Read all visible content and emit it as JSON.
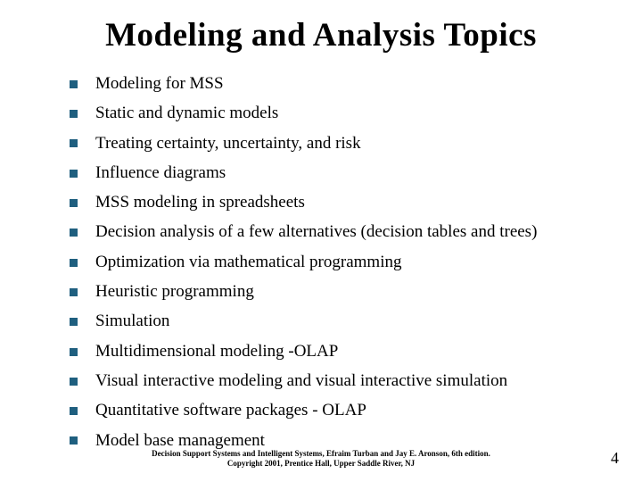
{
  "title": "Modeling and Analysis Topics",
  "bullets": [
    "Modeling for MSS",
    "Static and dynamic models",
    "Treating certainty, uncertainty, and risk",
    "Influence diagrams",
    "MSS modeling in spreadsheets",
    "Decision analysis of a few alternatives (decision tables and trees)",
    "Optimization via mathematical programming",
    "Heuristic programming",
    "Simulation",
    "Multidimensional modeling -OLAP",
    "Visual interactive modeling and visual interactive simulation",
    "Quantitative software packages  - OLAP",
    "Model base management"
  ],
  "footer_line1": "Decision Support Systems and Intelligent Systems, Efraim Turban and Jay E. Aronson, 6th edition.",
  "footer_line2": "Copyright 2001, Prentice Hall, Upper Saddle River, NJ",
  "page_number": "4",
  "colors": {
    "bullet_marker": "#1f5f7f",
    "text": "#000000",
    "background": "#ffffff"
  }
}
